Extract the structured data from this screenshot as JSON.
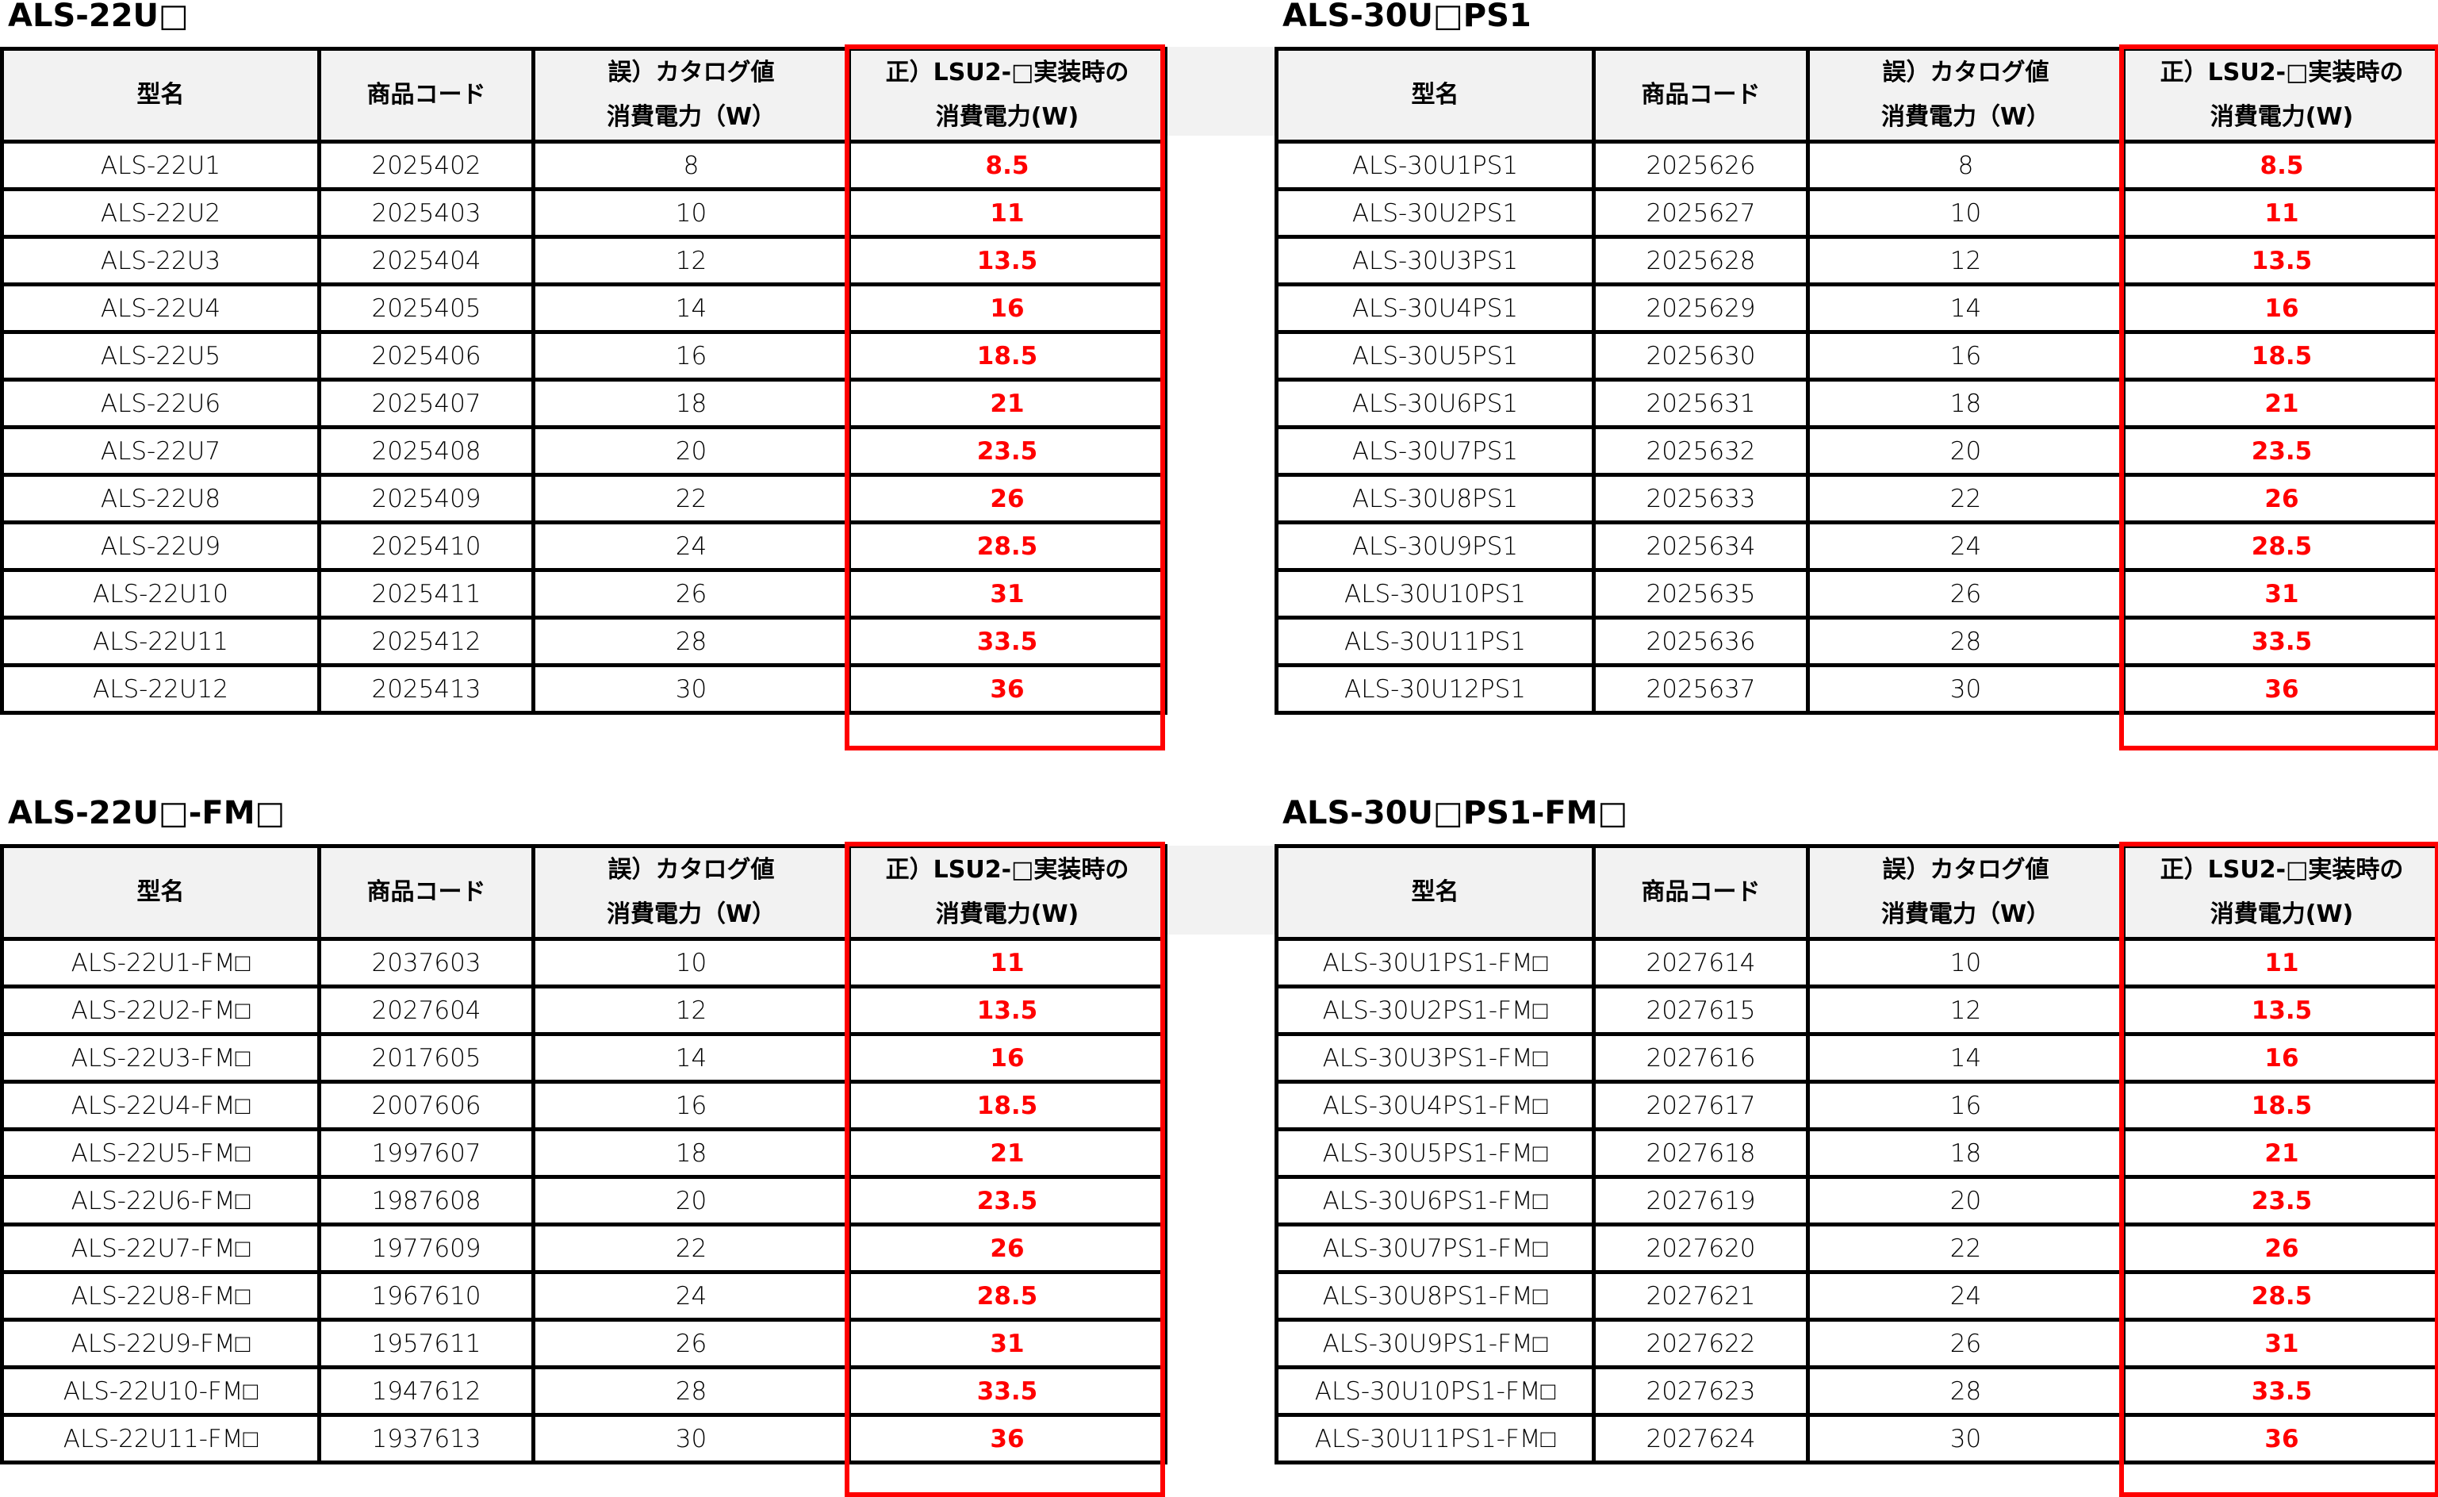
{
  "columns": [
    "型名",
    "商品コード",
    "誤）カタログ値\n消費電力（W）",
    "正）LSU2-□実装時の\n消費電力(W)"
  ],
  "accent_color": "#ff0000",
  "tables": [
    {
      "title": "ALS-22U□",
      "rows": [
        [
          "ALS-22U1",
          "2025402",
          "8",
          "8.5"
        ],
        [
          "ALS-22U2",
          "2025403",
          "10",
          "11"
        ],
        [
          "ALS-22U3",
          "2025404",
          "12",
          "13.5"
        ],
        [
          "ALS-22U4",
          "2025405",
          "14",
          "16"
        ],
        [
          "ALS-22U5",
          "2025406",
          "16",
          "18.5"
        ],
        [
          "ALS-22U6",
          "2025407",
          "18",
          "21"
        ],
        [
          "ALS-22U7",
          "2025408",
          "20",
          "23.5"
        ],
        [
          "ALS-22U8",
          "2025409",
          "22",
          "26"
        ],
        [
          "ALS-22U9",
          "2025410",
          "24",
          "28.5"
        ],
        [
          "ALS-22U10",
          "2025411",
          "26",
          "31"
        ],
        [
          "ALS-22U11",
          "2025412",
          "28",
          "33.5"
        ],
        [
          "ALS-22U12",
          "2025413",
          "30",
          "36"
        ]
      ]
    },
    {
      "title": "ALS-30U□PS1",
      "rows": [
        [
          "ALS-30U1PS1",
          "2025626",
          "8",
          "8.5"
        ],
        [
          "ALS-30U2PS1",
          "2025627",
          "10",
          "11"
        ],
        [
          "ALS-30U3PS1",
          "2025628",
          "12",
          "13.5"
        ],
        [
          "ALS-30U4PS1",
          "2025629",
          "14",
          "16"
        ],
        [
          "ALS-30U5PS1",
          "2025630",
          "16",
          "18.5"
        ],
        [
          "ALS-30U6PS1",
          "2025631",
          "18",
          "21"
        ],
        [
          "ALS-30U7PS1",
          "2025632",
          "20",
          "23.5"
        ],
        [
          "ALS-30U8PS1",
          "2025633",
          "22",
          "26"
        ],
        [
          "ALS-30U9PS1",
          "2025634",
          "24",
          "28.5"
        ],
        [
          "ALS-30U10PS1",
          "2025635",
          "26",
          "31"
        ],
        [
          "ALS-30U11PS1",
          "2025636",
          "28",
          "33.5"
        ],
        [
          "ALS-30U12PS1",
          "2025637",
          "30",
          "36"
        ]
      ]
    },
    {
      "title": "ALS-22U□-FM□",
      "rows": [
        [
          "ALS-22U1-FM□",
          "2037603",
          "10",
          "11"
        ],
        [
          "ALS-22U2-FM□",
          "2027604",
          "12",
          "13.5"
        ],
        [
          "ALS-22U3-FM□",
          "2017605",
          "14",
          "16"
        ],
        [
          "ALS-22U4-FM□",
          "2007606",
          "16",
          "18.5"
        ],
        [
          "ALS-22U5-FM□",
          "1997607",
          "18",
          "21"
        ],
        [
          "ALS-22U6-FM□",
          "1987608",
          "20",
          "23.5"
        ],
        [
          "ALS-22U7-FM□",
          "1977609",
          "22",
          "26"
        ],
        [
          "ALS-22U8-FM□",
          "1967610",
          "24",
          "28.5"
        ],
        [
          "ALS-22U9-FM□",
          "1957611",
          "26",
          "31"
        ],
        [
          "ALS-22U10-FM□",
          "1947612",
          "28",
          "33.5"
        ],
        [
          "ALS-22U11-FM□",
          "1937613",
          "30",
          "36"
        ]
      ]
    },
    {
      "title": "ALS-30U□PS1-FM□",
      "rows": [
        [
          "ALS-30U1PS1-FM□",
          "2027614",
          "10",
          "11"
        ],
        [
          "ALS-30U2PS1-FM□",
          "2027615",
          "12",
          "13.5"
        ],
        [
          "ALS-30U3PS1-FM□",
          "2027616",
          "14",
          "16"
        ],
        [
          "ALS-30U4PS1-FM□",
          "2027617",
          "16",
          "18.5"
        ],
        [
          "ALS-30U5PS1-FM□",
          "2027618",
          "18",
          "21"
        ],
        [
          "ALS-30U6PS1-FM□",
          "2027619",
          "20",
          "23.5"
        ],
        [
          "ALS-30U7PS1-FM□",
          "2027620",
          "22",
          "26"
        ],
        [
          "ALS-30U8PS1-FM□",
          "2027621",
          "24",
          "28.5"
        ],
        [
          "ALS-30U9PS1-FM□",
          "2027622",
          "26",
          "31"
        ],
        [
          "ALS-30U10PS1-FM□",
          "2027623",
          "28",
          "33.5"
        ],
        [
          "ALS-30U11PS1-FM□",
          "2027624",
          "30",
          "36"
        ]
      ]
    }
  ]
}
